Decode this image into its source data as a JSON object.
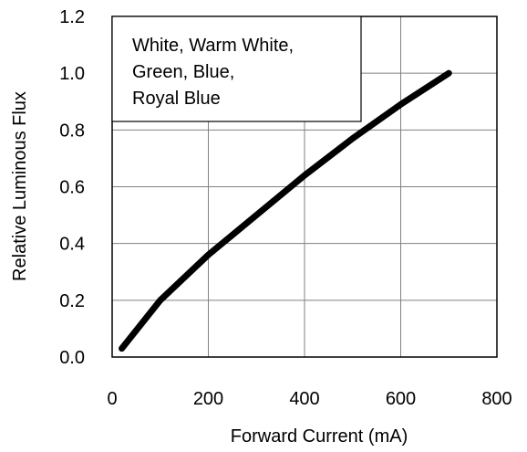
{
  "chart_data": {
    "type": "line",
    "title": "",
    "xlabel": "Forward Current (mA)",
    "ylabel": "Relative Luminous Flux",
    "xlim": [
      0,
      800
    ],
    "ylim": [
      0.0,
      1.2
    ],
    "x_ticks": [
      "0",
      "200",
      "400",
      "600",
      "800"
    ],
    "y_ticks": [
      "0.0",
      "0.2",
      "0.4",
      "0.6",
      "0.8",
      "1.0",
      "1.2"
    ],
    "grid": true,
    "legend_position": "top-left",
    "legend_lines": [
      "White, Warm White,",
      "Green, Blue,",
      "Royal Blue"
    ],
    "series": [
      {
        "x": [
          20,
          100,
          200,
          300,
          400,
          500,
          600,
          700
        ],
        "y": [
          0.03,
          0.2,
          0.36,
          0.5,
          0.64,
          0.77,
          0.89,
          1.0
        ],
        "color": "#000000"
      }
    ]
  }
}
